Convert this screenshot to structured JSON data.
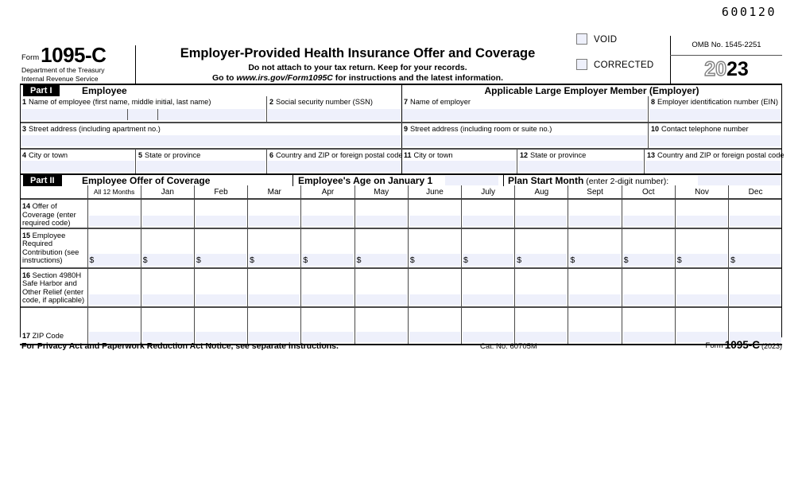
{
  "doc_id": "600120",
  "header": {
    "form_word": "Form",
    "form_number": "1095-C",
    "dept_line1": "Department of the Treasury",
    "dept_line2": "Internal Revenue Service",
    "title": "Employer-Provided Health Insurance Offer and Coverage",
    "subtitle": "Do not attach to your tax return. Keep for your records.",
    "goto_prefix": "Go to ",
    "goto_url": "www.irs.gov/Form1095C",
    "goto_suffix": " for instructions and the latest information.",
    "void_label": "VOID",
    "corrected_label": "CORRECTED",
    "omb": "OMB No. 1545-2251",
    "year_outline": "20",
    "year_bold": "23"
  },
  "part1": {
    "band_label": "Part I",
    "band_title": "Employee",
    "employer_band_title": "Applicable Large Employer Member (Employer)",
    "fields": [
      {
        "num": "1",
        "label": "Name of employee (first name, middle initial, last name)"
      },
      {
        "num": "2",
        "label": "Social security number (SSN)"
      },
      {
        "num": "3",
        "label": "Street address (including apartment no.)"
      },
      {
        "num": "4",
        "label": "City or town"
      },
      {
        "num": "5",
        "label": "State or province"
      },
      {
        "num": "6",
        "label": "Country and ZIP or foreign postal code"
      },
      {
        "num": "7",
        "label": "Name of employer"
      },
      {
        "num": "8",
        "label": "Employer identification number (EIN)"
      },
      {
        "num": "9",
        "label": "Street address (including room or suite no.)"
      },
      {
        "num": "10",
        "label": "Contact telephone number"
      },
      {
        "num": "11",
        "label": "City or town"
      },
      {
        "num": "12",
        "label": "State or province"
      },
      {
        "num": "13",
        "label": "Country and ZIP or foreign postal code"
      }
    ]
  },
  "part2": {
    "band_label": "Part II",
    "band_title": "Employee Offer of Coverage",
    "age_label": "Employee's Age on January 1",
    "plan_start_bold": "Plan Start Month",
    "plan_start_rest": " (enter 2-digit number):",
    "columns": [
      "All 12 Months",
      "Jan",
      "Feb",
      "Mar",
      "Apr",
      "May",
      "June",
      "July",
      "Aug",
      "Sept",
      "Oct",
      "Nov",
      "Dec"
    ],
    "currency_symbol": "$",
    "rows": [
      {
        "num": "14",
        "label": "Offer of Coverage (enter required code)",
        "has_dollar": false
      },
      {
        "num": "15",
        "label": "Employee Required Contribution (see instructions)",
        "has_dollar": true
      },
      {
        "num": "16",
        "label": "Section 4980H Safe Harbor and Other Relief (enter code, if applicable)",
        "has_dollar": false
      },
      {
        "num": "17",
        "label": "ZIP Code",
        "has_dollar": false
      }
    ]
  },
  "footer": {
    "privacy": "For Privacy Act and Paperwork Reduction Act Notice, see separate instructions.",
    "cat_no": "Cat. No. 60705M",
    "form_word": "Form",
    "form_number": "1095-C",
    "year": "(2023)"
  }
}
